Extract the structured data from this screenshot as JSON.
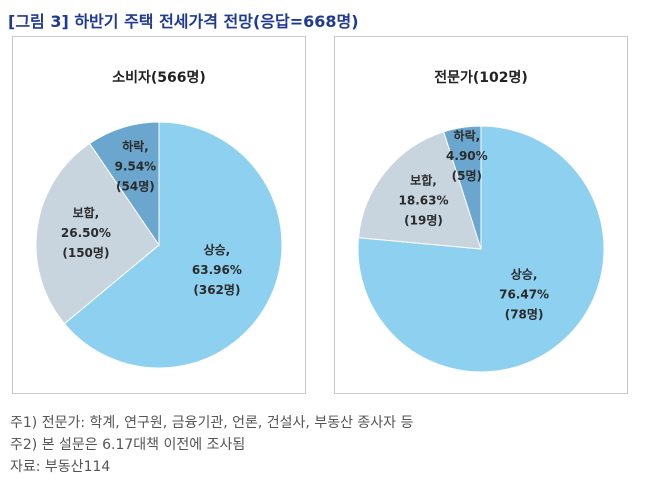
{
  "title": "[그림 3] 하반기 주택 전세가격 전망(응답=668명)",
  "chart_data": [
    {
      "type": "pie",
      "title": "소비자(566명)",
      "slices": [
        {
          "category": "상승,",
          "pct": "63.96%",
          "count": "(362명)",
          "value": 63.96,
          "color": "#8dd0f0"
        },
        {
          "category": "보합,",
          "pct": "26.50%",
          "count": "(150명)",
          "value": 26.5,
          "color": "#c8d5df"
        },
        {
          "category": "하락,",
          "pct": "9.54%",
          "count": "(54명)",
          "value": 9.54,
          "color": "#6aa6cd"
        }
      ]
    },
    {
      "type": "pie",
      "title": "전문가(102명)",
      "slices": [
        {
          "category": "상승,",
          "pct": "76.47%",
          "count": "(78명)",
          "value": 76.47,
          "color": "#8dd0f0"
        },
        {
          "category": "보합,",
          "pct": "18.63%",
          "count": "(19명)",
          "value": 18.63,
          "color": "#c8d5df"
        },
        {
          "category": "하락,",
          "pct": "4.90%",
          "count": "(5명)",
          "value": 4.9,
          "color": "#6aa6cd"
        }
      ]
    }
  ],
  "notes": [
    "주1) 전문가: 학계, 연구원, 금융기관, 언론, 건설사, 부동산 종사자 등",
    "주2) 본 설문은 6.17대책 이전에 조사됨",
    "자료: 부동산114"
  ]
}
